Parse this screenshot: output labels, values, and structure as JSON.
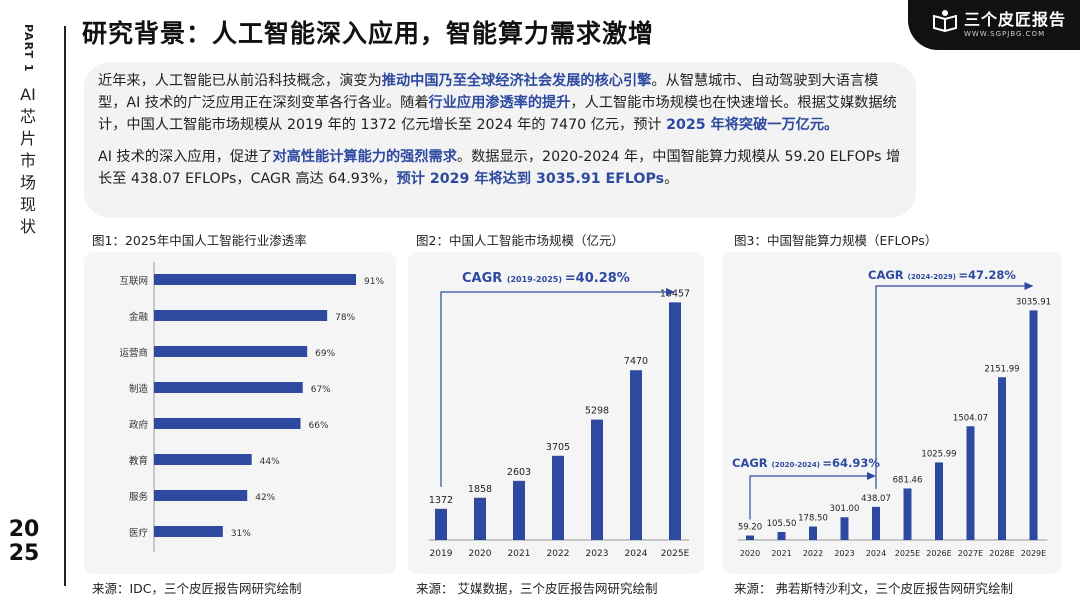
{
  "side": {
    "part": "PART 1",
    "title": "AI芯片市场现状",
    "year": "2025"
  },
  "title": "研究背景：人工智能深入应用，智能算力需求激增",
  "logo": {
    "text": "三个皮匠报告",
    "sub": "WWW.SGPJBG.COM"
  },
  "intro": {
    "p1": [
      "近年来，人工智能已从前沿科技概念，演变为",
      "推动中国乃至全球经济社会发展的核心引擎",
      "。从智慧城市、自动驾驶到大语言模型，AI 技术的广泛应用正在深刻变革各行各业。随着",
      "行业应用渗透率的提升",
      "，人工智能市场规模也在快速增长。根据艾媒数据统计，中国人工智能市场规模从 2019 年的 1372 亿元增长至 2024 年的 7470 亿元，预计 ",
      "2025 年将突破一万亿元。"
    ],
    "p2": [
      "AI 技术的深入应用，促进了",
      "对高性能计算能力的强烈需求",
      "。数据显示，2020-2024 年，中国智能算力规模从 59.20 ELFOPs 增长至 438.07 EFLOPs，CAGR 高达 64.93%，",
      "预计 2029 年将达到 3035.91 EFLOPs",
      "。"
    ]
  },
  "charts": {
    "c1": {
      "heading": "图1：2025年中国人工智能行业渗透率",
      "source": "来源：IDC，三个皮匠报告网研究绘制"
    },
    "c2": {
      "heading": "图2：中国人工智能市场规模（亿元）",
      "source": "来源： 艾媒数据，三个皮匠报告网研究绘制",
      "cagr_label": "CAGR",
      "cagr_range": "(2019-2025)",
      "cagr_value": "=40.28%"
    },
    "c3": {
      "heading": "图3：中国智能算力规模（EFLOPs）",
      "source": "来源： 弗若斯特沙利文，三个皮匠报告网研究绘制",
      "cagr1_label": "CAGR",
      "cagr1_range": "(2024-2029)",
      "cagr1_value": "=47.28%",
      "cagr2_label": "CAGR",
      "cagr2_range": "(2020-2024)",
      "cagr2_value": "=64.93%"
    }
  },
  "chart_data": [
    {
      "type": "bar",
      "orientation": "horizontal",
      "title": "图1：2025年中国人工智能行业渗透率",
      "categories": [
        "互联网",
        "金融",
        "运营商",
        "制造",
        "政府",
        "教育",
        "服务",
        "医疗"
      ],
      "values": [
        91,
        78,
        69,
        67,
        66,
        44,
        42,
        31
      ],
      "labels": [
        "91%",
        "78%",
        "69%",
        "67%",
        "66%",
        "44%",
        "42%",
        "31%"
      ],
      "xlim": [
        0,
        100
      ],
      "color": "#2e4aa0"
    },
    {
      "type": "bar",
      "title": "图2：中国人工智能市场规模（亿元）",
      "categories": [
        "2019",
        "2020",
        "2021",
        "2022",
        "2023",
        "2024",
        "2025E"
      ],
      "values": [
        1372,
        1858,
        2603,
        3705,
        5298,
        7470,
        10457
      ],
      "labels": [
        "1372",
        "1858",
        "2603",
        "3705",
        "5298",
        "7470",
        "10457"
      ],
      "ylim": [
        0,
        11000
      ],
      "color": "#2e4aa0"
    },
    {
      "type": "bar",
      "title": "图3：中国智能算力规模（EFLOPs）",
      "categories": [
        "2020",
        "2021",
        "2022",
        "2023",
        "2024",
        "2025E",
        "2026E",
        "2027E",
        "2028E",
        "2029E"
      ],
      "values": [
        59.2,
        105.5,
        178.5,
        301.0,
        438.07,
        681.46,
        1025.99,
        1504.07,
        2151.99,
        3035.91
      ],
      "labels": [
        "59.20",
        "105.50",
        "178.50",
        "301.00",
        "438.07",
        "681.46",
        "1025.99",
        "1504.07",
        "2151.99",
        "3035.91"
      ],
      "ylim": [
        0,
        3200
      ],
      "color": "#2e4aa0"
    }
  ]
}
